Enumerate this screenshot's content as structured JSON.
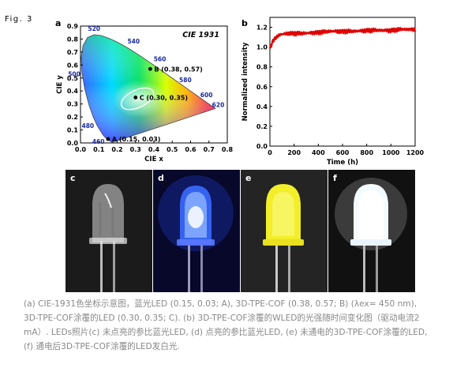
{
  "figure": {
    "label": "Fig. 3"
  },
  "panel_labels": {
    "a": "a",
    "b": "b",
    "c": "c",
    "d": "d",
    "e": "e",
    "f": "f"
  },
  "chart_data": [
    {
      "type": "scatter",
      "title": "CIE 1931",
      "xlabel": "CIE x",
      "ylabel": "CIE y",
      "xlim": [
        0.0,
        0.8
      ],
      "ylim": [
        0.0,
        0.9
      ],
      "xticks": [
        "0.0",
        "0.1",
        "0.2",
        "0.3",
        "0.4",
        "0.5",
        "0.6",
        "0.7",
        "0.8"
      ],
      "yticks": [
        "0.0",
        "0.1",
        "0.2",
        "0.3",
        "0.4",
        "0.5",
        "0.6",
        "0.7",
        "0.8",
        "0.9"
      ],
      "wavelength_labels": [
        {
          "text": "520",
          "x": 0.074,
          "y": 0.834
        },
        {
          "text": "540",
          "x": 0.23,
          "y": 0.754
        },
        {
          "text": "560",
          "x": 0.373,
          "y": 0.624
        },
        {
          "text": "580",
          "x": 0.512,
          "y": 0.487
        },
        {
          "text": "600",
          "x": 0.627,
          "y": 0.372
        },
        {
          "text": "620",
          "x": 0.691,
          "y": 0.308
        },
        {
          "text": "500",
          "x": 0.008,
          "y": 0.538
        },
        {
          "text": "480",
          "x": 0.091,
          "y": 0.133
        },
        {
          "text": "460",
          "x": 0.144,
          "y": 0.03
        }
      ],
      "points": [
        {
          "label": "A (0.15, 0.03)",
          "x": 0.15,
          "y": 0.03
        },
        {
          "label": "B (0.38, 0.57)",
          "x": 0.38,
          "y": 0.57
        },
        {
          "label": "C (0.30, 0.35)",
          "x": 0.3,
          "y": 0.35
        }
      ],
      "grid": false
    },
    {
      "type": "line",
      "xlabel": "Time (h)",
      "ylabel": "Normalized intensity",
      "xlim": [
        0,
        1200
      ],
      "ylim": [
        0,
        1.3
      ],
      "xticks": [
        "0",
        "200",
        "400",
        "600",
        "800",
        "1000",
        "1200"
      ],
      "yticks": [
        "0.0",
        "0.2",
        "0.4",
        "0.6",
        "0.8",
        "1.0",
        "1.2"
      ],
      "series": [
        {
          "color": "#e00000",
          "x": [
            0,
            10,
            25,
            50,
            75,
            100,
            150,
            200,
            300,
            400,
            500,
            600,
            700,
            800,
            900,
            1000,
            1100,
            1200
          ],
          "y": [
            0.98,
            1.02,
            1.06,
            1.1,
            1.12,
            1.13,
            1.14,
            1.14,
            1.14,
            1.15,
            1.16,
            1.16,
            1.16,
            1.17,
            1.17,
            1.17,
            1.18,
            1.18
          ]
        }
      ],
      "grid": false
    }
  ],
  "caption": "(a) CIE-1931色坐标示意图，蓝光LED (0.15, 0.03; A), 3D-TPE-COF (0.38, 0.57; B) (λex= 450 nm), 3D-TPE-COF涂覆的LED (0.30, 0.35; C). (b) 3D-TPE-COF涂覆的WLED的光强随时间变化图（驱动电流2 mA）. LEDs照片(c) 未点亮的参比蓝光LED, (d) 点亮的参比蓝光LED, (e) 未通电的3D-TPE-COF涂覆的LED, (f) 通电后3D-TPE-COF涂覆的LED发白光."
}
